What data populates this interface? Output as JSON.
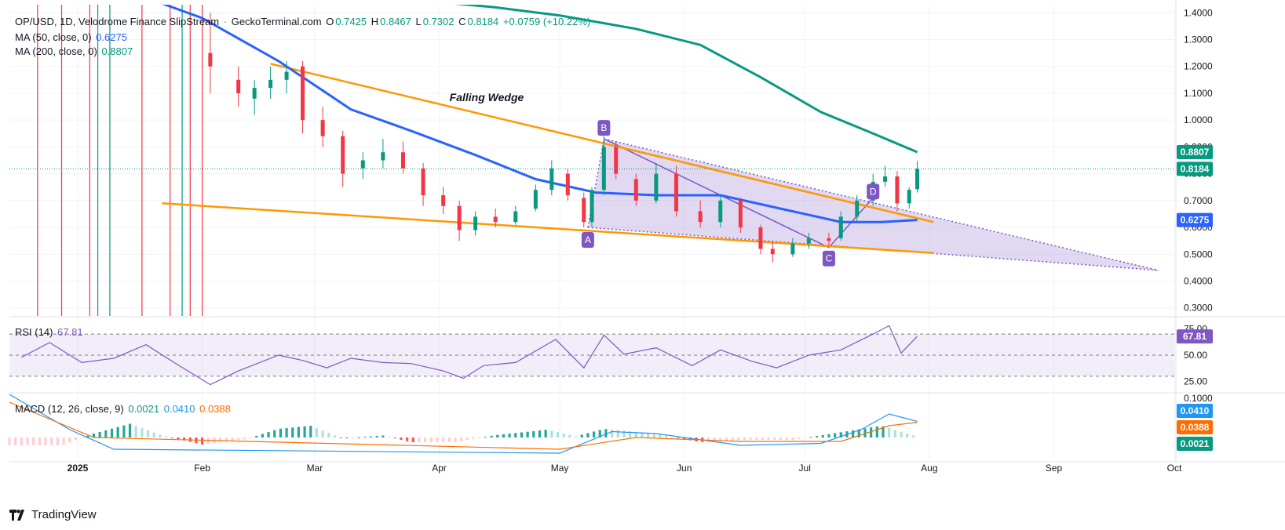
{
  "header": {
    "symbol": "OP/USD, 1D, Velodrome Finance SlipStream",
    "source": "GeckoTerminal.com",
    "o_label": "O",
    "o_value": "0.7425",
    "h_label": "H",
    "h_value": "0.8467",
    "l_label": "L",
    "l_value": "0.7302",
    "c_label": "C",
    "c_value": "0.8184",
    "change": "+0.0759 (+10.22%)"
  },
  "indicators": {
    "ma50": {
      "label": "MA (50, close, 0)",
      "value": "0.6275",
      "color": "#2962ff"
    },
    "ma200": {
      "label": "MA (200, close, 0)",
      "value": "0.8807",
      "color": "#089981"
    },
    "rsi": {
      "label": "RSI (14)",
      "value": "67.81",
      "color": "#7e57c2"
    },
    "macd": {
      "label": "MACD (12, 26, close, 9)",
      "hist": "0.0021",
      "macd": "0.0410",
      "signal": "0.0388"
    }
  },
  "annotations": {
    "title": "Falling Wedge",
    "points": [
      "A",
      "B",
      "C",
      "D"
    ]
  },
  "colors": {
    "up": "#089981",
    "down": "#f23645",
    "wedge": "#ff9800",
    "pattern": "#7e57c2",
    "pattern_fill": "#b39ddb",
    "ma50": "#2962ff",
    "ma200": "#089981",
    "grid": "#f0f3fa"
  },
  "axes": {
    "price_ticks": [
      "1.4000",
      "1.3000",
      "1.2000",
      "1.1000",
      "1.0000",
      "0.9000",
      "0.8000",
      "0.7000",
      "0.6000",
      "0.5000",
      "0.4000",
      "0.3000"
    ],
    "rsi_ticks": [
      "75.00",
      "50.00",
      "25.00"
    ],
    "macd_ticks": [
      "0.1000"
    ],
    "time_labels": [
      "2025",
      "Feb",
      "Mar",
      "Apr",
      "May",
      "Jun",
      "Jul",
      "Aug",
      "Sep",
      "Oct"
    ]
  },
  "price_tags": [
    {
      "value": "0.8807",
      "color": "#089981"
    },
    {
      "value": "0.8184",
      "color": "#089981"
    },
    {
      "value": "0.6275",
      "color": "#2962ff"
    }
  ],
  "rsi_tag": {
    "value": "67.81",
    "color": "#7e57c2"
  },
  "macd_tags": [
    {
      "value": "0.0410",
      "color": "#2196f3"
    },
    {
      "value": "0.0388",
      "color": "#ff6d00"
    },
    {
      "value": "0.0021",
      "color": "#089981"
    }
  ],
  "brand": "TradingView",
  "chart_data": {
    "type": "candlestick",
    "title": "OP/USD, 1D, Velodrome Finance SlipStream",
    "ylim": [
      0.27,
      1.43
    ],
    "x_range": [
      "2024-12-15",
      "2025-10-01"
    ],
    "candles": [
      [
        "2025-02-03",
        1.25,
        1.4,
        1.1,
        1.2
      ],
      [
        "2025-02-10",
        1.15,
        1.2,
        1.05,
        1.1
      ],
      [
        "2025-02-14",
        1.08,
        1.15,
        1.02,
        1.12
      ],
      [
        "2025-02-18",
        1.12,
        1.2,
        1.08,
        1.15
      ],
      [
        "2025-02-22",
        1.15,
        1.22,
        1.1,
        1.18
      ],
      [
        "2025-02-26",
        1.2,
        1.22,
        0.95,
        1.0
      ],
      [
        "2025-03-03",
        1.0,
        1.05,
        0.9,
        0.94
      ],
      [
        "2025-03-08",
        0.94,
        0.96,
        0.75,
        0.8
      ],
      [
        "2025-03-13",
        0.82,
        0.88,
        0.78,
        0.85
      ],
      [
        "2025-03-18",
        0.85,
        0.93,
        0.82,
        0.88
      ],
      [
        "2025-03-23",
        0.88,
        0.92,
        0.8,
        0.82
      ],
      [
        "2025-03-28",
        0.82,
        0.84,
        0.68,
        0.72
      ],
      [
        "2025-04-02",
        0.72,
        0.75,
        0.65,
        0.68
      ],
      [
        "2025-04-06",
        0.68,
        0.7,
        0.55,
        0.59
      ],
      [
        "2025-04-10",
        0.59,
        0.66,
        0.57,
        0.64
      ],
      [
        "2025-04-15",
        0.64,
        0.67,
        0.6,
        0.62
      ],
      [
        "2025-04-20",
        0.62,
        0.68,
        0.61,
        0.66
      ],
      [
        "2025-04-25",
        0.67,
        0.76,
        0.66,
        0.74
      ],
      [
        "2025-04-29",
        0.74,
        0.85,
        0.72,
        0.82
      ],
      [
        "2025-05-03",
        0.8,
        0.82,
        0.7,
        0.72
      ],
      [
        "2025-05-07",
        0.71,
        0.73,
        0.6,
        0.62
      ],
      [
        "2025-05-09",
        0.62,
        0.75,
        0.6,
        0.74
      ],
      [
        "2025-05-12",
        0.74,
        0.94,
        0.72,
        0.9
      ],
      [
        "2025-05-15",
        0.9,
        0.92,
        0.78,
        0.8
      ],
      [
        "2025-05-20",
        0.78,
        0.8,
        0.68,
        0.7
      ],
      [
        "2025-05-25",
        0.7,
        0.84,
        0.69,
        0.8
      ],
      [
        "2025-05-30",
        0.8,
        0.83,
        0.64,
        0.66
      ],
      [
        "2025-06-05",
        0.66,
        0.7,
        0.6,
        0.62
      ],
      [
        "2025-06-10",
        0.62,
        0.72,
        0.6,
        0.7
      ],
      [
        "2025-06-15",
        0.7,
        0.71,
        0.58,
        0.6
      ],
      [
        "2025-06-20",
        0.6,
        0.61,
        0.5,
        0.52
      ],
      [
        "2025-06-23",
        0.52,
        0.55,
        0.47,
        0.5
      ],
      [
        "2025-06-28",
        0.5,
        0.56,
        0.49,
        0.54
      ],
      [
        "2025-07-02",
        0.54,
        0.58,
        0.52,
        0.56
      ],
      [
        "2025-07-07",
        0.56,
        0.58,
        0.53,
        0.55
      ],
      [
        "2025-07-10",
        0.56,
        0.66,
        0.55,
        0.64
      ],
      [
        "2025-07-14",
        0.64,
        0.72,
        0.62,
        0.7
      ],
      [
        "2025-07-18",
        0.7,
        0.8,
        0.68,
        0.77
      ],
      [
        "2025-07-21",
        0.77,
        0.83,
        0.75,
        0.79
      ],
      [
        "2025-07-24",
        0.79,
        0.81,
        0.66,
        0.69
      ],
      [
        "2025-07-27",
        0.69,
        0.75,
        0.67,
        0.74
      ],
      [
        "2025-07-29",
        0.7425,
        0.8467,
        0.7302,
        0.8184
      ]
    ],
    "ma50": [
      [
        "2025-01-10",
        1.5
      ],
      [
        "2025-02-01",
        1.38
      ],
      [
        "2025-02-20",
        1.22
      ],
      [
        "2025-03-10",
        1.04
      ],
      [
        "2025-03-25",
        0.96
      ],
      [
        "2025-04-10",
        0.87
      ],
      [
        "2025-04-25",
        0.78
      ],
      [
        "2025-05-10",
        0.73
      ],
      [
        "2025-05-25",
        0.72
      ],
      [
        "2025-06-10",
        0.72
      ],
      [
        "2025-06-25",
        0.67
      ],
      [
        "2025-07-10",
        0.62
      ],
      [
        "2025-07-20",
        0.62
      ],
      [
        "2025-07-29",
        0.6275
      ]
    ],
    "ma200": [
      [
        "2025-03-25",
        1.45
      ],
      [
        "2025-04-15",
        1.42
      ],
      [
        "2025-05-01",
        1.39
      ],
      [
        "2025-05-20",
        1.34
      ],
      [
        "2025-06-05",
        1.28
      ],
      [
        "2025-06-20",
        1.16
      ],
      [
        "2025-07-05",
        1.03
      ],
      [
        "2025-07-18",
        0.95
      ],
      [
        "2025-07-29",
        0.8807
      ]
    ],
    "wedge_upper": [
      [
        "2025-02-18",
        1.21
      ],
      [
        "2025-08-02",
        0.62
      ]
    ],
    "wedge_lower": [
      [
        "2025-01-22",
        0.69
      ],
      [
        "2025-08-02",
        0.505
      ]
    ],
    "pattern_points": {
      "A": [
        "2025-05-08",
        0.6
      ],
      "B": [
        "2025-05-12",
        0.93
      ],
      "C": [
        "2025-07-07",
        0.525
      ],
      "D": [
        "2025-07-18",
        0.71
      ]
    },
    "projection_apex": [
      "2025-09-27",
      0.44
    ],
    "rsi": {
      "ylim": [
        15,
        85
      ],
      "bands": [
        30,
        50,
        70
      ],
      "points": [
        [
          "2024-12-18",
          48
        ],
        [
          "2024-12-25",
          62
        ],
        [
          "2025-01-02",
          43
        ],
        [
          "2025-01-10",
          47
        ],
        [
          "2025-01-18",
          60
        ],
        [
          "2025-01-25",
          43
        ],
        [
          "2025-02-03",
          22
        ],
        [
          "2025-02-10",
          35
        ],
        [
          "2025-02-20",
          50
        ],
        [
          "2025-02-26",
          45
        ],
        [
          "2025-03-04",
          38
        ],
        [
          "2025-03-10",
          47
        ],
        [
          "2025-03-18",
          43
        ],
        [
          "2025-03-25",
          42
        ],
        [
          "2025-04-02",
          35
        ],
        [
          "2025-04-07",
          28
        ],
        [
          "2025-04-12",
          40
        ],
        [
          "2025-04-20",
          43
        ],
        [
          "2025-04-30",
          65
        ],
        [
          "2025-05-07",
          38
        ],
        [
          "2025-05-12",
          69
        ],
        [
          "2025-05-17",
          51
        ],
        [
          "2025-05-25",
          57
        ],
        [
          "2025-06-03",
          40
        ],
        [
          "2025-06-10",
          55
        ],
        [
          "2025-06-18",
          44
        ],
        [
          "2025-06-24",
          38
        ],
        [
          "2025-07-02",
          50
        ],
        [
          "2025-07-10",
          55
        ],
        [
          "2025-07-18",
          70
        ],
        [
          "2025-07-22",
          78
        ],
        [
          "2025-07-25",
          52
        ],
        [
          "2025-07-29",
          67.81
        ]
      ]
    },
    "macd": {
      "ylim": [
        -0.06,
        0.11
      ],
      "hist": [
        [
          "2024-12-15",
          -0.02
        ],
        [
          "2024-12-28",
          -0.02
        ],
        [
          "2025-01-05",
          0.01
        ],
        [
          "2025-01-14",
          0.035
        ],
        [
          "2025-01-22",
          0.005
        ],
        [
          "2025-02-01",
          -0.018
        ],
        [
          "2025-02-12",
          -0.004
        ],
        [
          "2025-02-20",
          0.022
        ],
        [
          "2025-02-28",
          0.03
        ],
        [
          "2025-03-08",
          -0.003
        ],
        [
          "2025-03-18",
          0.005
        ],
        [
          "2025-03-25",
          -0.012
        ],
        [
          "2025-04-05",
          -0.012
        ],
        [
          "2025-04-15",
          0.006
        ],
        [
          "2025-04-28",
          0.02
        ],
        [
          "2025-05-05",
          0.003
        ],
        [
          "2025-05-12",
          0.022
        ],
        [
          "2025-05-25",
          0.01
        ],
        [
          "2025-06-05",
          -0.012
        ],
        [
          "2025-06-18",
          -0.006
        ],
        [
          "2025-06-28",
          -0.006
        ],
        [
          "2025-07-08",
          0.01
        ],
        [
          "2025-07-20",
          0.03
        ],
        [
          "2025-07-29",
          0.0021
        ]
      ],
      "macd_line": [
        [
          "2024-12-15",
          0.11
        ],
        [
          "2024-12-30",
          0.02
        ],
        [
          "2025-01-10",
          -0.03
        ],
        [
          "2025-05-01",
          -0.04
        ],
        [
          "2025-05-14",
          0.015
        ],
        [
          "2025-05-25",
          0.01
        ],
        [
          "2025-06-15",
          -0.02
        ],
        [
          "2025-07-05",
          -0.015
        ],
        [
          "2025-07-15",
          0.02
        ],
        [
          "2025-07-22",
          0.06
        ],
        [
          "2025-07-29",
          0.041
        ]
      ],
      "signal_line": [
        [
          "2024-12-15",
          0.09
        ],
        [
          "2025-01-05",
          0.0
        ],
        [
          "2025-05-01",
          -0.03
        ],
        [
          "2025-05-20",
          0.0
        ],
        [
          "2025-06-15",
          -0.01
        ],
        [
          "2025-07-10",
          -0.01
        ],
        [
          "2025-07-22",
          0.03
        ],
        [
          "2025-07-29",
          0.0388
        ]
      ]
    }
  }
}
